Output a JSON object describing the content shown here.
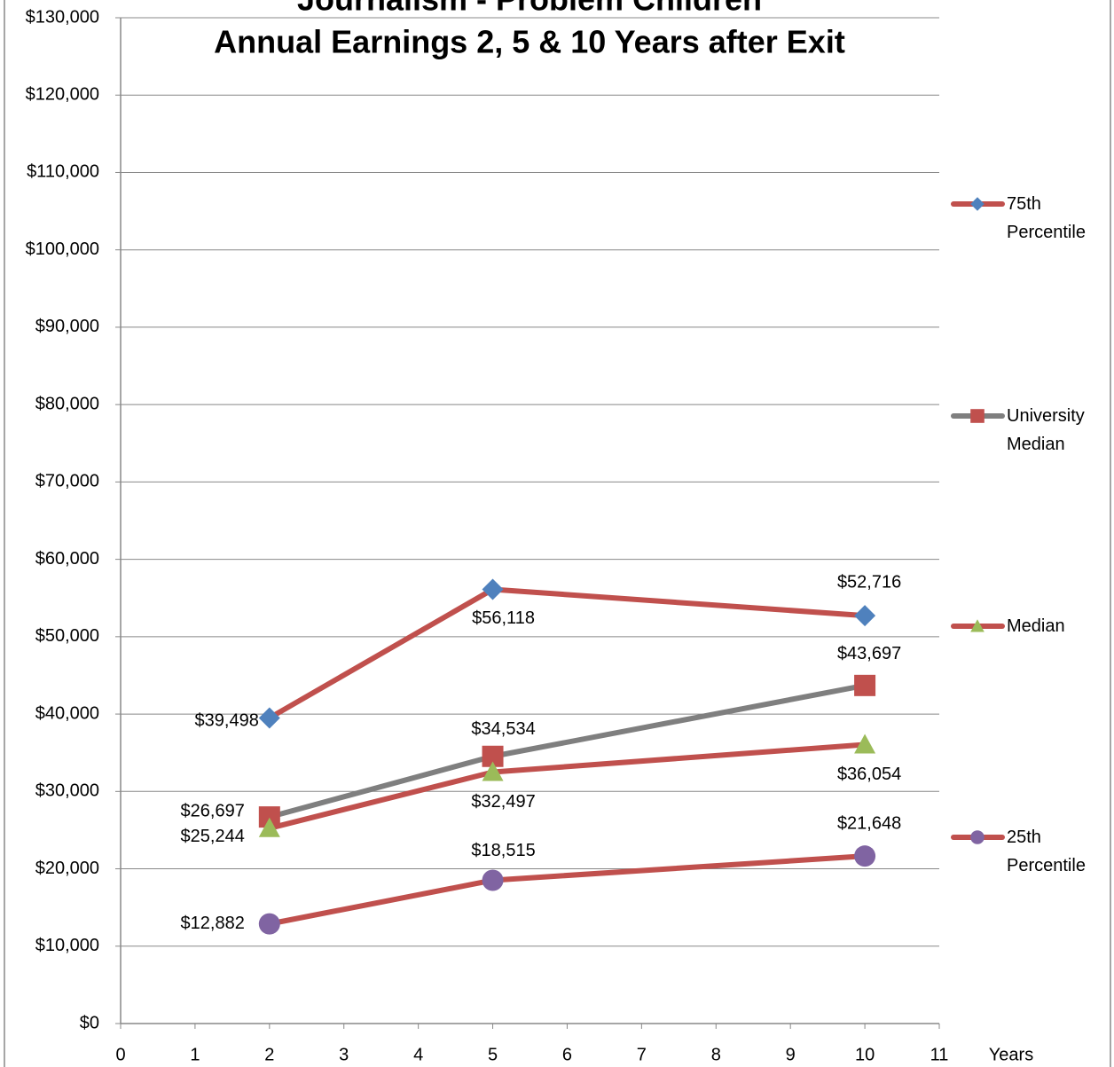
{
  "chart_data": {
    "type": "line",
    "title": [
      "Journalism - Problem Children",
      "Annual Earnings 2, 5 & 10 Years after Exit"
    ],
    "x_label": "Years",
    "x": [
      2,
      5,
      10
    ],
    "xlim": [
      0,
      11
    ],
    "xticks": [
      0,
      1,
      2,
      3,
      4,
      5,
      6,
      7,
      8,
      9,
      10,
      11
    ],
    "ylim": [
      0,
      130000
    ],
    "yticks": [
      {
        "value": 0,
        "label": "$0"
      },
      {
        "value": 10000,
        "label": "$10,000"
      },
      {
        "value": 20000,
        "label": "$20,000"
      },
      {
        "value": 30000,
        "label": "$30,000"
      },
      {
        "value": 40000,
        "label": "$40,000"
      },
      {
        "value": 50000,
        "label": "$50,000"
      },
      {
        "value": 60000,
        "label": "$60,000"
      },
      {
        "value": 70000,
        "label": "$70,000"
      },
      {
        "value": 80000,
        "label": "$80,000"
      },
      {
        "value": 90000,
        "label": "$90,000"
      },
      {
        "value": 100000,
        "label": "$100,000"
      },
      {
        "value": 110000,
        "label": "$110,000"
      },
      {
        "value": 120000,
        "label": "$120,000"
      },
      {
        "value": 130000,
        "label": "$130,000"
      }
    ],
    "grid": true,
    "legend": "right",
    "series": [
      {
        "name": "75th Percentile",
        "color": "#c0504d",
        "marker": "diamond",
        "marker_color": "#4f81bd",
        "values": [
          39498,
          56118,
          52716
        ],
        "value_labels": [
          "$39,498",
          "$56,118",
          "$52,716"
        ]
      },
      {
        "name": "University Median",
        "color": "#7f7f7f",
        "marker": "square",
        "marker_color": "#c0504d",
        "values": [
          26697,
          34534,
          43697
        ],
        "value_labels": [
          "$26,697",
          "$34,534",
          "$43,697"
        ]
      },
      {
        "name": "Median",
        "color": "#c0504d",
        "marker": "triangle",
        "marker_color": "#9bbb59",
        "values": [
          25244,
          32497,
          36054
        ],
        "value_labels": [
          "$25,244",
          "$32,497",
          "$36,054"
        ]
      },
      {
        "name": "25th Percentile",
        "color": "#c0504d",
        "marker": "circle",
        "marker_color": "#8064a2",
        "values": [
          12882,
          18515,
          21648
        ],
        "value_labels": [
          "$12,882",
          "$18,515",
          "$21,648"
        ]
      }
    ]
  }
}
